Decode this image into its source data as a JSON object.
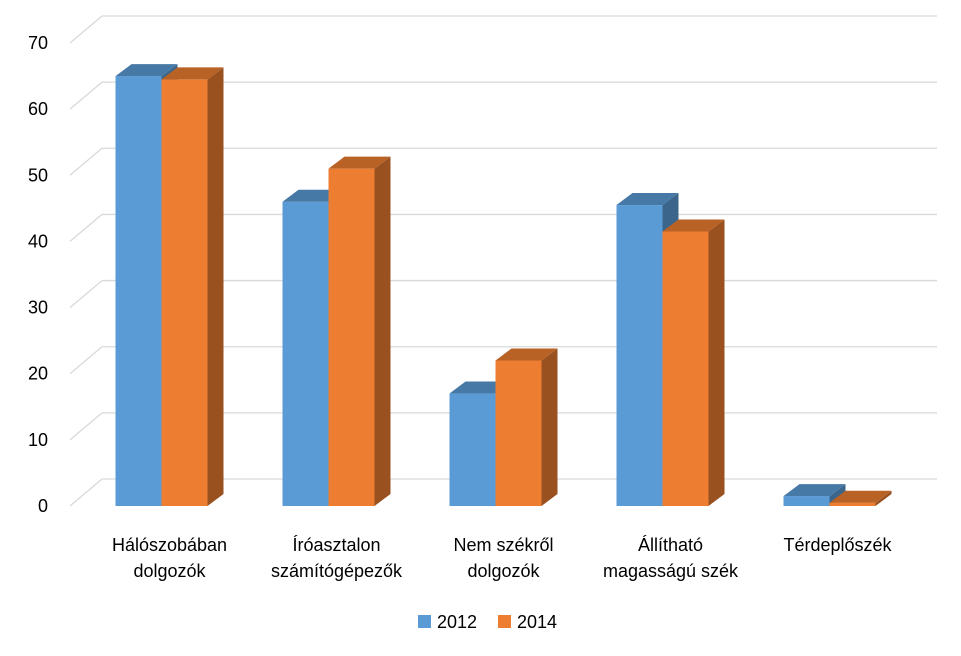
{
  "chart_data": {
    "type": "bar",
    "categories": [
      [
        "Hálószobában",
        "dolgozók"
      ],
      [
        "Íróasztalon",
        "számítógépezők"
      ],
      [
        "Nem székről",
        "dolgozók"
      ],
      [
        "Állítható",
        "magasságú szék"
      ],
      [
        "Térdeplőszék"
      ]
    ],
    "series": [
      {
        "name": "2012",
        "color": "#5B9BD5",
        "values": [
          65,
          46,
          17,
          45.5,
          1.5
        ]
      },
      {
        "name": "2014",
        "color": "#ED7D31",
        "values": [
          64.5,
          51,
          22,
          41.5,
          0.5
        ]
      }
    ],
    "ylim": [
      0,
      70
    ],
    "yticks": [
      "0",
      "10",
      "20",
      "30",
      "40",
      "50",
      "60",
      "70"
    ],
    "grid": true,
    "legend_position": "bottom",
    "style": "3d-clustered-column"
  }
}
